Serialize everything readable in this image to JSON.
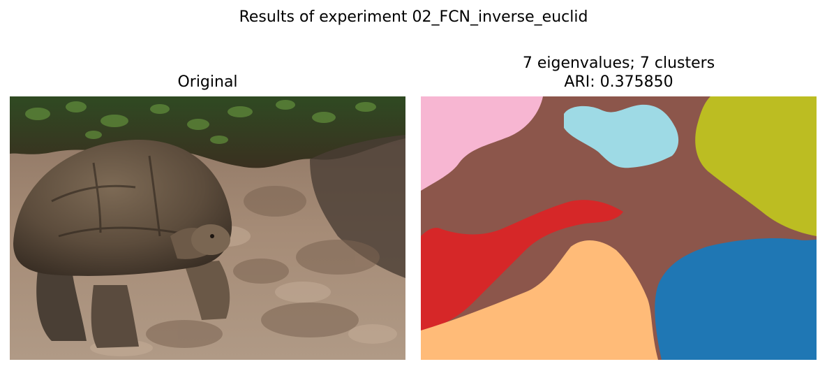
{
  "figure": {
    "suptitle": "Results of experiment 02_FCN_inverse_euclid"
  },
  "left_panel": {
    "title": "Original"
  },
  "right_panel": {
    "title_line1": "7 eigenvalues; 7 clusters",
    "title_line2": "ARI: 0.375850"
  },
  "cluster_colors": {
    "pink": "#f7b6d2",
    "brown": "#8c564b",
    "light_blue": "#9edae5",
    "olive": "#bcbd22",
    "red": "#d62728",
    "peach": "#ffbb78",
    "blue": "#1f77b4"
  }
}
